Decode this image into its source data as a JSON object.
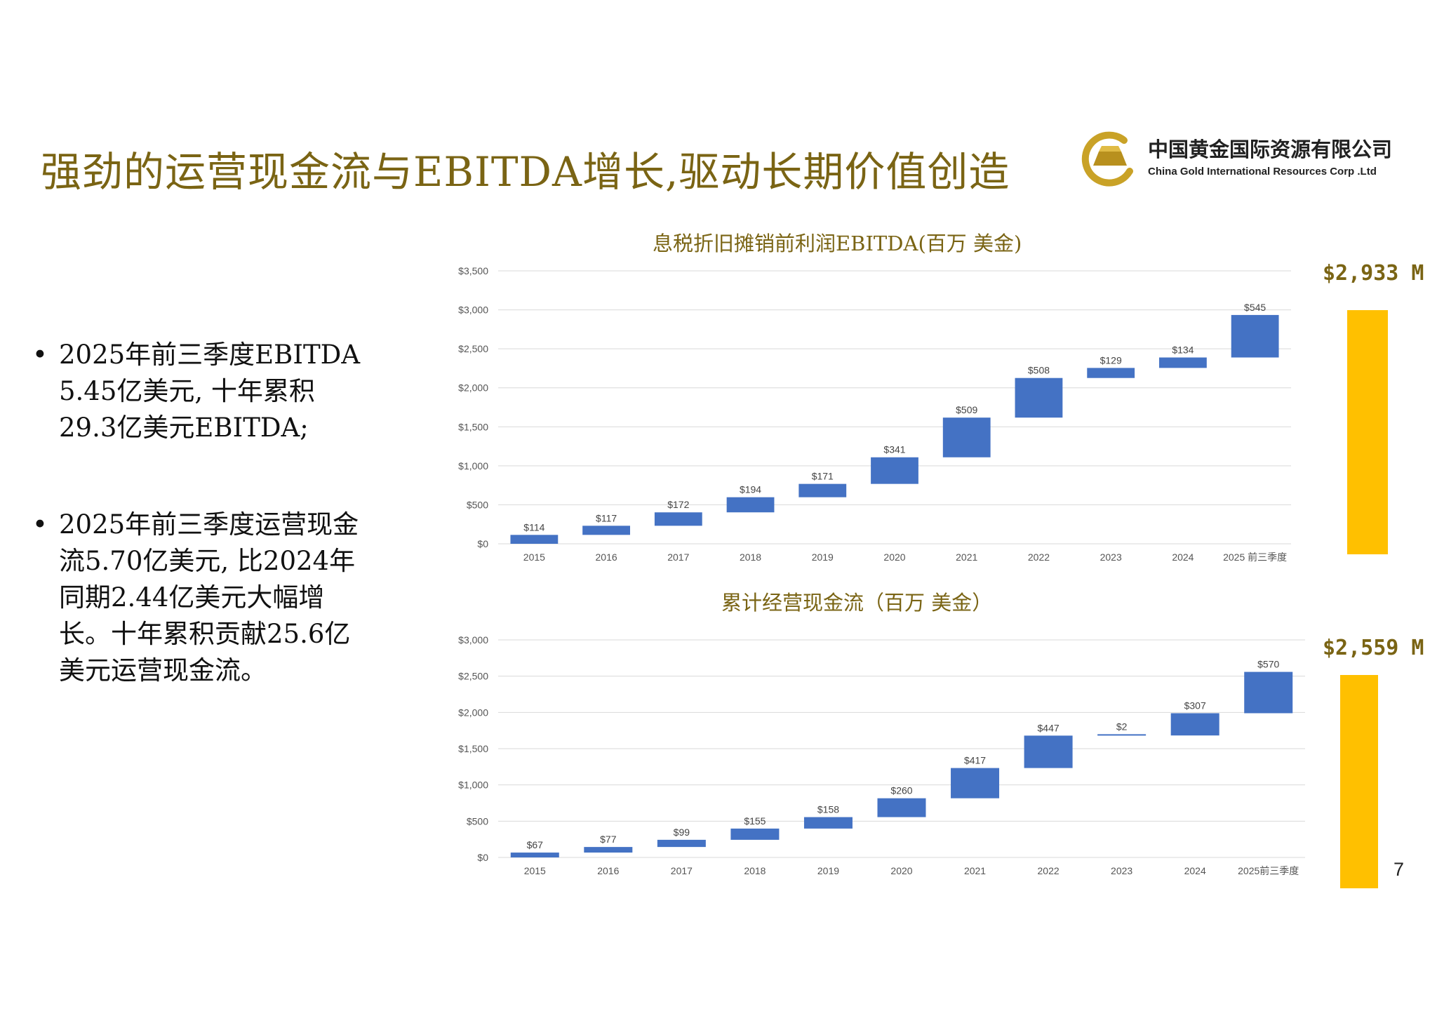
{
  "title": "强劲的运营现金流与EBITDA增长,驱动长期价值创造",
  "logo": {
    "name_cn": "中国黄金国际资源有限公司",
    "name_en": "China Gold International Resources Corp .Ltd"
  },
  "bullets": [
    "2025年前三季度EBITDA 5.45亿美元, 十年累积29.3亿美元EBITDA;",
    "2025年前三季度运营现金流5.70亿美元, 比2024年同期2.44亿美元大幅增长。十年累积贡献25.6亿美元运营现金流。"
  ],
  "colors": {
    "bar": "#4472c4",
    "total": "#ffc000",
    "title": "#7a6414"
  },
  "chart_data": [
    {
      "type": "bar",
      "subtype": "waterfall",
      "title": "息税折旧摊销前利润EBITDA(百万 美金)",
      "categories": [
        "2015",
        "2016",
        "2017",
        "2018",
        "2019",
        "2020",
        "2021",
        "2022",
        "2023",
        "2024",
        "2025 前三季度"
      ],
      "values": [
        114,
        117,
        172,
        194,
        171,
        341,
        509,
        508,
        129,
        134,
        545
      ],
      "value_labels": [
        "$114",
        "$117",
        "$172",
        "$194",
        "$171",
        "$341",
        "$509",
        "$508",
        "$129",
        "$134",
        "$545"
      ],
      "ylim": [
        0,
        3500
      ],
      "yticks": [
        0,
        500,
        1000,
        1500,
        2000,
        2500,
        3000,
        3500
      ],
      "ytick_labels": [
        "$0",
        "$500",
        "$1,000",
        "$1,500",
        "$2,000",
        "$2,500",
        "$3,000",
        "$3,500"
      ],
      "grid": true,
      "total_label": "$2,933 M",
      "total_value": 2933
    },
    {
      "type": "bar",
      "subtype": "waterfall",
      "title": "累计经营现金流（百万 美金）",
      "categories": [
        "2015",
        "2016",
        "2017",
        "2018",
        "2019",
        "2020",
        "2021",
        "2022",
        "2023",
        "2024",
        "2025前三季度"
      ],
      "values": [
        67,
        77,
        99,
        155,
        158,
        260,
        417,
        447,
        2,
        307,
        570
      ],
      "value_labels": [
        "$67",
        "$77",
        "$99",
        "$155",
        "$158",
        "$260",
        "$417",
        "$447",
        "$2",
        "$307",
        "$570"
      ],
      "ylim": [
        0,
        3000
      ],
      "yticks": [
        0,
        500,
        1000,
        1500,
        2000,
        2500,
        3000
      ],
      "ytick_labels": [
        "$0",
        "$500",
        "$1,000",
        "$1,500",
        "$2,000",
        "$2,500",
        "$3,000"
      ],
      "grid": true,
      "total_label": "$2,559 M",
      "total_value": 2559
    }
  ],
  "page_number": "7"
}
